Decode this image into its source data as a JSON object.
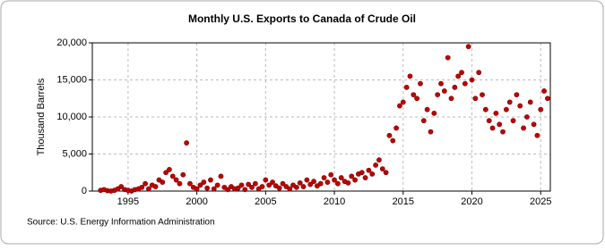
{
  "chart_data": {
    "type": "scatter",
    "title": "Monthly U.S. Exports to Canada of Crude Oil",
    "y_label": "Thousand Barrels",
    "source": "Source: U.S. Energy Information Administration",
    "color": "#c00000",
    "grid": true,
    "xlim": [
      1992.4,
      2025.7
    ],
    "ylim": [
      0,
      20000
    ],
    "xticks": [
      1995,
      2000,
      2005,
      2010,
      2015,
      2020,
      2025
    ],
    "yticks": [
      {
        "value": 0,
        "label": "0"
      },
      {
        "value": 5000,
        "label": "5,000"
      },
      {
        "value": 10000,
        "label": "10,000"
      },
      {
        "value": 15000,
        "label": "15,000"
      },
      {
        "value": 20000,
        "label": "20,000"
      }
    ],
    "x": [
      1993,
      1993.25,
      1993.5,
      1993.75,
      1994,
      1994.25,
      1994.5,
      1994.75,
      1995,
      1995.25,
      1995.5,
      1995.75,
      1996,
      1996.25,
      1996.5,
      1996.75,
      1997,
      1997.25,
      1997.5,
      1997.75,
      1998,
      1998.25,
      1998.5,
      1998.75,
      1999,
      1999.25,
      1999.5,
      1999.75,
      2000,
      2000.25,
      2000.5,
      2000.75,
      2001,
      2001.25,
      2001.5,
      2001.75,
      2002,
      2002.25,
      2002.5,
      2002.75,
      2003,
      2003.25,
      2003.5,
      2003.75,
      2004,
      2004.25,
      2004.5,
      2004.75,
      2005,
      2005.25,
      2005.5,
      2005.75,
      2006,
      2006.25,
      2006.5,
      2006.75,
      2007,
      2007.25,
      2007.5,
      2007.75,
      2008,
      2008.25,
      2008.5,
      2008.75,
      2009,
      2009.25,
      2009.5,
      2009.75,
      2010,
      2010.25,
      2010.5,
      2010.75,
      2011,
      2011.25,
      2011.5,
      2011.75,
      2012,
      2012.25,
      2012.5,
      2012.75,
      2013,
      2013.25,
      2013.5,
      2013.75,
      2014,
      2014.25,
      2014.5,
      2014.75,
      2015,
      2015.25,
      2015.5,
      2015.75,
      2016,
      2016.25,
      2016.5,
      2016.75,
      2017,
      2017.25,
      2017.5,
      2017.75,
      2018,
      2018.25,
      2018.5,
      2018.75,
      2019,
      2019.25,
      2019.5,
      2019.75,
      2020,
      2020.25,
      2020.5,
      2020.75,
      2021,
      2021.25,
      2021.5,
      2021.75,
      2022,
      2022.25,
      2022.5,
      2022.75,
      2023,
      2023.25,
      2023.5,
      2023.75,
      2024,
      2024.25,
      2024.5,
      2024.75,
      2025,
      2025.25,
      2025.5
    ],
    "values": [
      100,
      200,
      50,
      0,
      100,
      300,
      600,
      200,
      100,
      0,
      200,
      300,
      500,
      1000,
      300,
      800,
      600,
      1500,
      1200,
      2500,
      2900,
      2000,
      1500,
      1000,
      2200,
      6500,
      1000,
      500,
      300,
      800,
      1200,
      400,
      1500,
      300,
      800,
      2000,
      500,
      200,
      600,
      300,
      400,
      800,
      200,
      900,
      500,
      1000,
      300,
      600,
      1500,
      800,
      1200,
      700,
      400,
      1000,
      600,
      300,
      800,
      500,
      1100,
      600,
      1500,
      900,
      1300,
      700,
      1000,
      1800,
      1200,
      2200,
      1500,
      1000,
      1800,
      1300,
      1100,
      2000,
      1500,
      2300,
      2500,
      1800,
      2800,
      2300,
      3500,
      4200,
      3000,
      2500,
      7500,
      6800,
      8500,
      11500,
      12000,
      14000,
      15500,
      13000,
      12500,
      14500,
      9500,
      11000,
      8000,
      10500,
      13000,
      14500,
      13500,
      18000,
      12500,
      14000,
      15500,
      16000,
      14500,
      19500,
      15000,
      12500,
      16000,
      13000,
      11000,
      9500,
      8500,
      10500,
      9000,
      8000,
      11000,
      12000,
      9500,
      13000,
      11500,
      8500,
      10000,
      12000,
      9000,
      7500,
      11000,
      13500,
      12500
    ]
  }
}
